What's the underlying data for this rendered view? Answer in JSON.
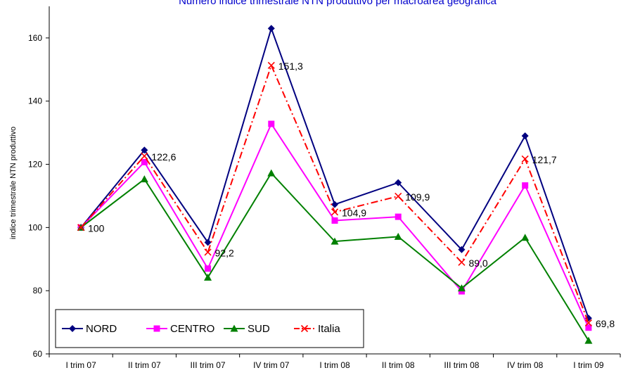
{
  "chart_data": {
    "type": "line",
    "title": "Numero indice trimestrale NTN produttivo per macroarea geografica",
    "ylabel": "indice trimestrale NTN produttivo",
    "xlabel": "",
    "ylim": [
      60,
      170
    ],
    "yticks": [
      "60",
      "80",
      "100",
      "120",
      "140",
      "160"
    ],
    "grid": false,
    "legend_placement": "bottom-left",
    "categories": [
      "I trim 07",
      "II trim 07",
      "III trim 07",
      "IV trim 07",
      "I trim 08",
      "II trim 08",
      "III trim 08",
      "IV trim 08",
      "I trim 09"
    ],
    "series": [
      {
        "name": "NORD",
        "color": "#000080",
        "marker": "diamond",
        "dash": "solid",
        "values": [
          100,
          124.5,
          95.3,
          163,
          107.3,
          114.2,
          93,
          129,
          71.3
        ]
      },
      {
        "name": "CENTRO",
        "color": "#ff00ff",
        "marker": "square",
        "dash": "solid",
        "values": [
          100,
          120.7,
          87,
          132.8,
          102.2,
          103.4,
          79.8,
          113.3,
          68.3
        ]
      },
      {
        "name": "SUD",
        "color": "#008000",
        "marker": "triangle",
        "dash": "solid",
        "values": [
          100,
          115.3,
          84.2,
          117.2,
          95.6,
          97.1,
          80.8,
          96.8,
          64.2
        ]
      },
      {
        "name": "Italia",
        "color": "#ff0000",
        "marker": "x",
        "dash": "dashdot",
        "values": [
          100,
          122.6,
          92.2,
          151.3,
          104.9,
          109.9,
          89.0,
          121.7,
          69.8
        ],
        "data_labels": [
          "100",
          "122,6",
          "92,2",
          "151,3",
          "104,9",
          "109,9",
          "89,0",
          "121,7",
          "69,8"
        ]
      }
    ]
  }
}
